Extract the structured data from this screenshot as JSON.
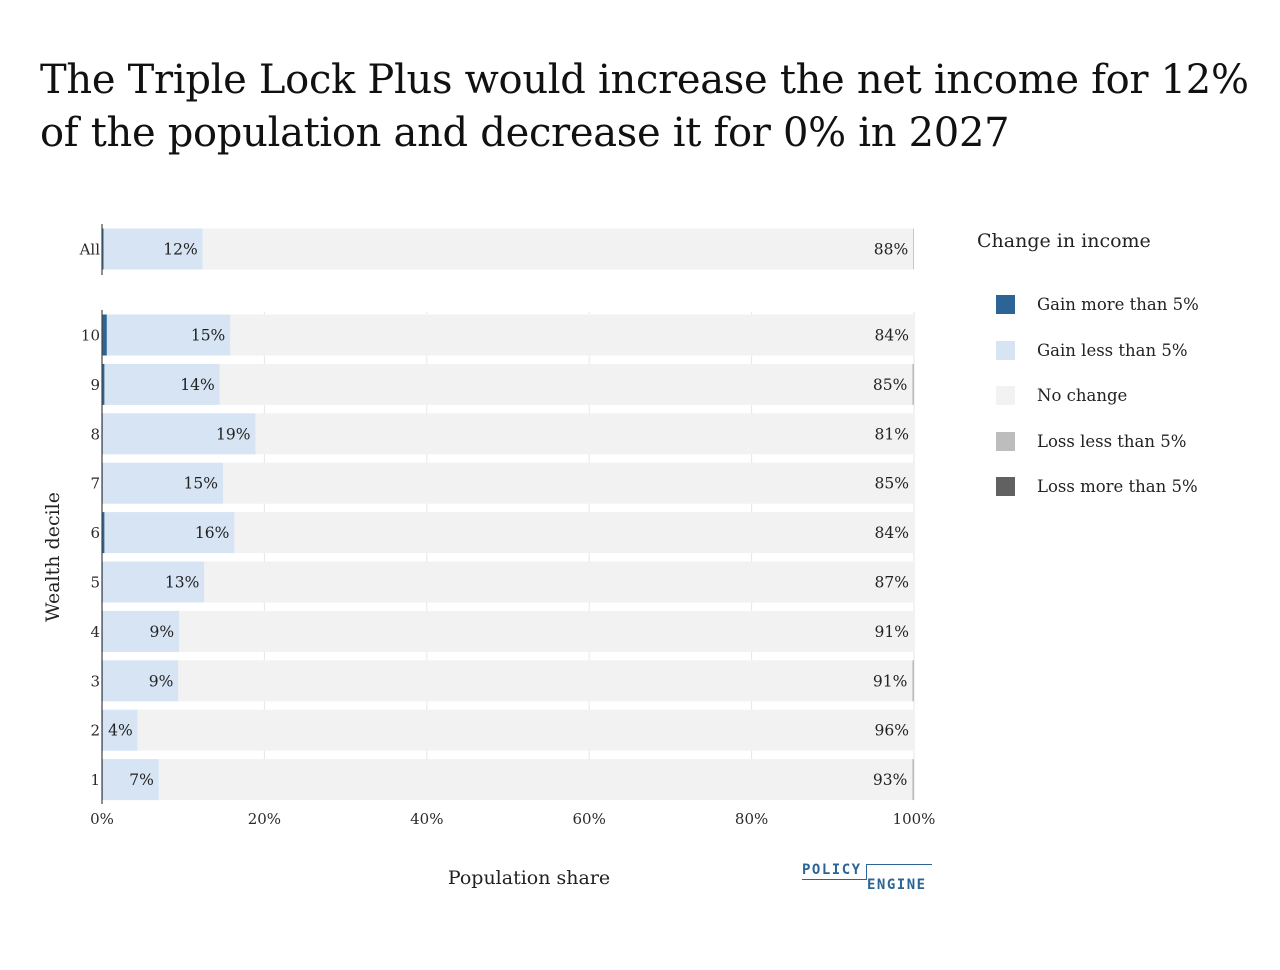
{
  "title": "The Triple Lock Plus would increase the net income for 12% of the population and decrease it for 0% in 2027",
  "chart_data": {
    "type": "bar",
    "orientation": "horizontal",
    "stacked": true,
    "xlabel": "Population share",
    "ylabel": "Wealth decile",
    "xlim": [
      0,
      100
    ],
    "x_ticks": [
      "0%",
      "20%",
      "40%",
      "60%",
      "80%",
      "100%"
    ],
    "x_tick_values": [
      0,
      20,
      40,
      60,
      80,
      100
    ],
    "grid": true,
    "legend_title": "Change in income",
    "legend_position": "right",
    "series": [
      {
        "name": "Gain more than 5%",
        "color": "#2c6496"
      },
      {
        "name": "Gain less than 5%",
        "color": "#d6e4f4"
      },
      {
        "name": "No change",
        "color": "#f2f2f2"
      },
      {
        "name": "Loss less than 5%",
        "color": "#bdbdbd"
      },
      {
        "name": "Loss more than 5%",
        "color": "#616161"
      }
    ],
    "groups": [
      {
        "category": "All",
        "values": [
          0.2,
          12.2,
          87.5,
          0.1,
          0
        ],
        "labels": [
          "",
          "12%",
          "88%",
          "",
          ""
        ]
      }
    ],
    "categories": [
      "10",
      "9",
      "8",
      "7",
      "6",
      "5",
      "4",
      "3",
      "2",
      "1"
    ],
    "rows": [
      {
        "category": "10",
        "values": [
          0.6,
          15.2,
          84.2,
          0,
          0
        ],
        "labels": [
          "",
          "15%",
          "84%",
          "",
          ""
        ]
      },
      {
        "category": "9",
        "values": [
          0.3,
          14.2,
          85.3,
          0.2,
          0
        ],
        "labels": [
          "",
          "14%",
          "85%",
          "",
          ""
        ]
      },
      {
        "category": "8",
        "values": [
          0.1,
          18.8,
          81.1,
          0,
          0
        ],
        "labels": [
          "",
          "19%",
          "81%",
          "",
          ""
        ]
      },
      {
        "category": "7",
        "values": [
          0.1,
          14.8,
          85.1,
          0,
          0
        ],
        "labels": [
          "",
          "15%",
          "85%",
          "",
          ""
        ]
      },
      {
        "category": "6",
        "values": [
          0.3,
          16.0,
          83.7,
          0,
          0
        ],
        "labels": [
          "",
          "16%",
          "84%",
          "",
          ""
        ]
      },
      {
        "category": "5",
        "values": [
          0.1,
          12.5,
          87.4,
          0,
          0
        ],
        "labels": [
          "",
          "13%",
          "87%",
          "",
          ""
        ]
      },
      {
        "category": "4",
        "values": [
          0.1,
          9.4,
          90.5,
          0,
          0
        ],
        "labels": [
          "",
          "9%",
          "91%",
          "",
          ""
        ]
      },
      {
        "category": "3",
        "values": [
          0.1,
          9.3,
          90.4,
          0.2,
          0
        ],
        "labels": [
          "",
          "9%",
          "91%",
          "",
          ""
        ]
      },
      {
        "category": "2",
        "values": [
          0.1,
          4.3,
          95.6,
          0,
          0
        ],
        "labels": [
          "",
          "4%",
          "96%",
          "",
          ""
        ]
      },
      {
        "category": "1",
        "values": [
          0.1,
          6.9,
          92.8,
          0.2,
          0
        ],
        "labels": [
          "",
          "7%",
          "93%",
          "",
          ""
        ]
      }
    ]
  },
  "logo": {
    "line1": "POLICY",
    "line2": "ENGINE"
  }
}
